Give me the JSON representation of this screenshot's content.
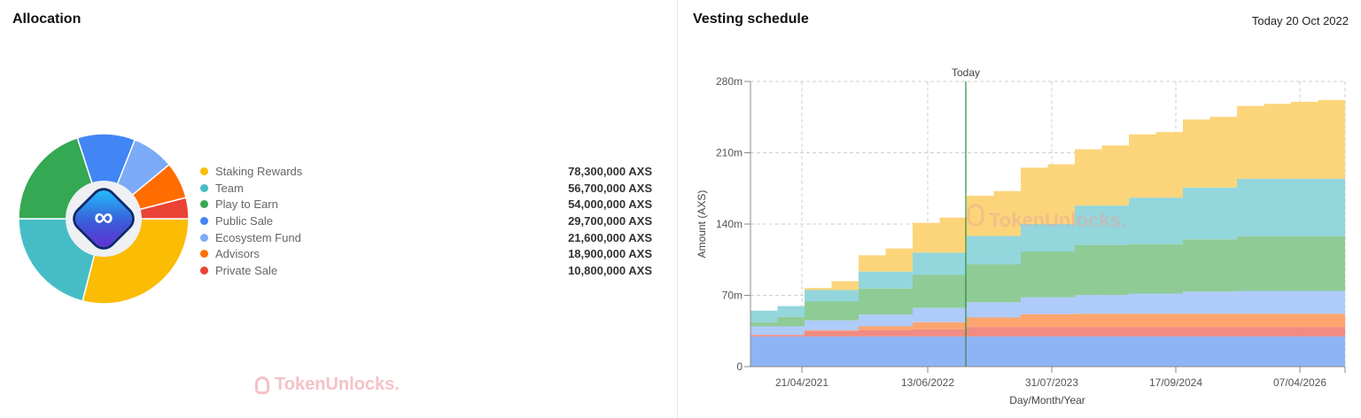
{
  "allocation": {
    "title": "Allocation",
    "watermark": "TokenUnlocks.",
    "logo": "axie-infinity-logo",
    "items": [
      {
        "label": "Staking Rewards",
        "value": "78,300,000 AXS",
        "amount": 78300000,
        "color": "#fbbc04"
      },
      {
        "label": "Team",
        "value": "56,700,000 AXS",
        "amount": 56700000,
        "color": "#46bdc6"
      },
      {
        "label": "Play to Earn",
        "value": "54,000,000 AXS",
        "amount": 54000000,
        "color": "#34a853"
      },
      {
        "label": "Public Sale",
        "value": "29,700,000 AXS",
        "amount": 29700000,
        "color": "#4285f4"
      },
      {
        "label": "Ecosystem Fund",
        "value": "21,600,000 AXS",
        "amount": 21600000,
        "color": "#7baaf7"
      },
      {
        "label": "Advisors",
        "value": "18,900,000 AXS",
        "amount": 18900000,
        "color": "#ff6d01"
      },
      {
        "label": "Private Sale",
        "value": "10,800,000 AXS",
        "amount": 10800000,
        "color": "#ea4335"
      }
    ]
  },
  "vesting": {
    "title": "Vesting schedule",
    "today_label": "Today 20 Oct 2022",
    "watermark": "TokenUnlocks."
  },
  "chart_data": [
    {
      "type": "pie",
      "style": "donut",
      "categories": [
        "Staking Rewards",
        "Team",
        "Play to Earn",
        "Public Sale",
        "Ecosystem Fund",
        "Advisors",
        "Private Sale"
      ],
      "values": [
        78300000,
        56700000,
        54000000,
        29700000,
        21600000,
        18900000,
        10800000
      ],
      "legend": "right"
    },
    {
      "type": "area",
      "stacked": true,
      "step": true,
      "xlabel": "Day/Month/Year",
      "ylabel": "Amount (AXS)",
      "ylim": [
        0,
        280
      ],
      "yticks": [
        "0",
        "70m",
        "140m",
        "210m",
        "280m"
      ],
      "ytick_values": [
        0,
        70,
        140,
        210,
        280
      ],
      "xticks": [
        "21/04/2021",
        "13/06/2022",
        "31/07/2023",
        "17/09/2024",
        "07/04/2026"
      ],
      "grid": true,
      "marker": {
        "label": "Today",
        "date": "20/10/2022",
        "color": "#2e8b3a"
      },
      "x": [
        "11/2020",
        "02/2021",
        "05/2021",
        "08/2021",
        "11/2021",
        "02/2022",
        "05/2022",
        "08/2022",
        "11/2022",
        "02/2023",
        "05/2023",
        "08/2023",
        "11/2023",
        "02/2024",
        "05/2024",
        "08/2024",
        "11/2024",
        "02/2025",
        "05/2025",
        "08/2025",
        "11/2025",
        "02/2026"
      ],
      "series": [
        {
          "name": "Public Sale",
          "color": "#8fb4f6",
          "values": [
            29.7,
            29.7,
            29.7,
            29.7,
            29.7,
            29.7,
            29.7,
            29.7,
            29.7,
            29.7,
            29.7,
            29.7,
            29.7,
            29.7,
            29.7,
            29.7,
            29.7,
            29.7,
            29.7,
            29.7,
            29.7,
            29.7
          ]
        },
        {
          "name": "Private Sale",
          "color": "#f28b82",
          "values": [
            1.5,
            1.5,
            5.3,
            5.3,
            6.5,
            6.5,
            7.0,
            7.0,
            9.3,
            9.3,
            9.3,
            9.3,
            9.3,
            9.3,
            9.3,
            9.3,
            9.3,
            9.3,
            9.3,
            9.3,
            9.3,
            9.3
          ]
        },
        {
          "name": "Advisors",
          "color": "#fca56e",
          "values": [
            0,
            0,
            0.6,
            0.6,
            3.4,
            3.4,
            7.0,
            7.0,
            9.3,
            9.3,
            12.5,
            12.5,
            13,
            13,
            13,
            13,
            13,
            13,
            13,
            13,
            13,
            13
          ]
        },
        {
          "name": "Ecosystem Fund",
          "color": "#afcbfa",
          "values": [
            8.4,
            8.4,
            9.8,
            9.8,
            11.6,
            11.6,
            13.9,
            13.9,
            15,
            15,
            16.5,
            16.5,
            18.3,
            18.3,
            19.7,
            19.7,
            21.8,
            21.8,
            22.3,
            22.3,
            22.3,
            22.3
          ]
        },
        {
          "name": "Play to Earn",
          "color": "#8fcb95",
          "values": [
            4.1,
            9.2,
            18.5,
            18.5,
            25.5,
            25.5,
            32.4,
            32.4,
            37.1,
            37.1,
            45,
            45,
            49.2,
            49.2,
            48.6,
            48.6,
            51.2,
            51.2,
            53.8,
            53.8,
            53.8,
            53.8
          ]
        },
        {
          "name": "Team",
          "color": "#93d6dc",
          "values": [
            11.3,
            10.7,
            11.3,
            11.3,
            16.7,
            16.7,
            22,
            22,
            28,
            28,
            27,
            27,
            38.7,
            38.7,
            45.7,
            45.7,
            50.9,
            50.9,
            56.5,
            56.5,
            56.5,
            56.5
          ]
        },
        {
          "name": "Staking Rewards",
          "color": "#fcd57b",
          "values": [
            0,
            0,
            2,
            8.7,
            15.9,
            22.6,
            29.2,
            34.4,
            39.4,
            44,
            55.3,
            58.7,
            55.3,
            59,
            62,
            64.3,
            66.8,
            69.4,
            71.4,
            73.4,
            75.4,
            77.2
          ]
        }
      ]
    }
  ]
}
